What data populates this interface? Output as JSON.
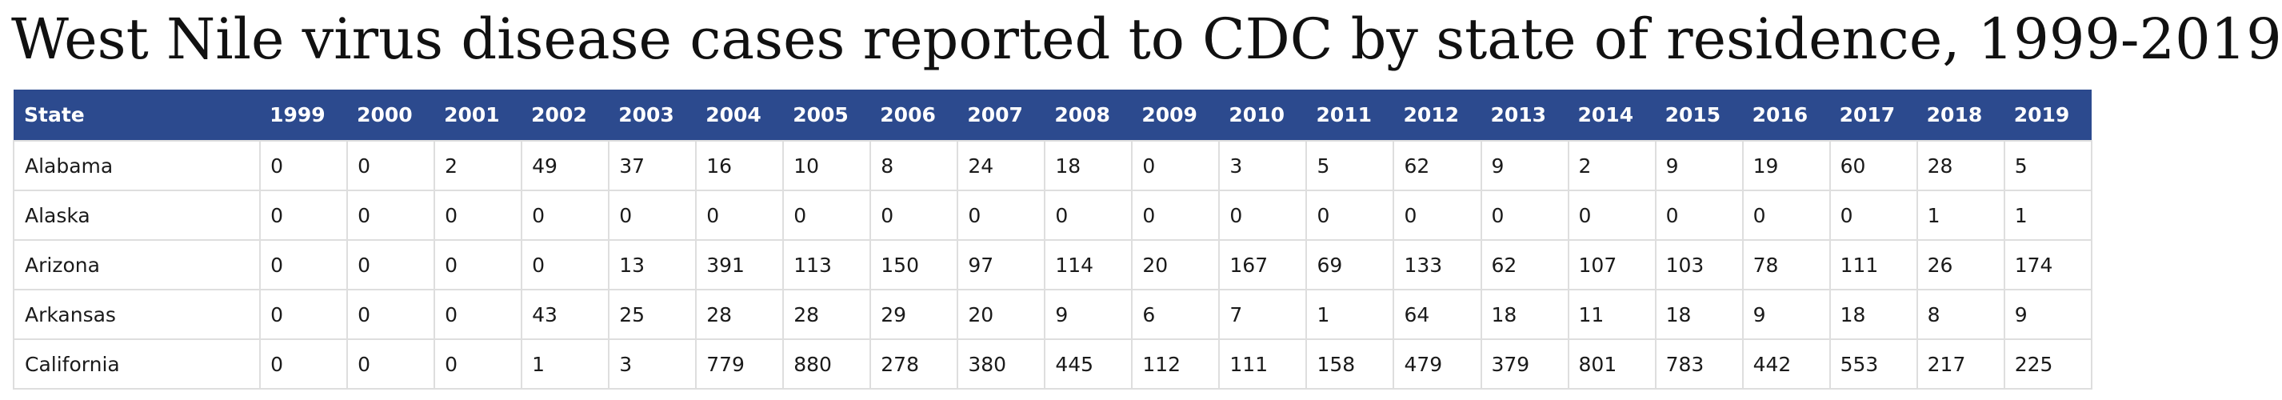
{
  "title": "West Nile virus disease cases reported to CDC by state of residence, 1999-2019",
  "table": {
    "state_header": "State",
    "years": [
      "1999",
      "2000",
      "2001",
      "2002",
      "2003",
      "2004",
      "2005",
      "2006",
      "2007",
      "2008",
      "2009",
      "2010",
      "2011",
      "2012",
      "2013",
      "2014",
      "2015",
      "2016",
      "2017",
      "2018",
      "2019"
    ],
    "rows": [
      {
        "state": "Alabama",
        "values": [
          "0",
          "0",
          "2",
          "49",
          "37",
          "16",
          "10",
          "8",
          "24",
          "18",
          "0",
          "3",
          "5",
          "62",
          "9",
          "2",
          "9",
          "19",
          "60",
          "28",
          "5"
        ]
      },
      {
        "state": "Alaska",
        "values": [
          "0",
          "0",
          "0",
          "0",
          "0",
          "0",
          "0",
          "0",
          "0",
          "0",
          "0",
          "0",
          "0",
          "0",
          "0",
          "0",
          "0",
          "0",
          "0",
          "1",
          "1"
        ]
      },
      {
        "state": "Arizona",
        "values": [
          "0",
          "0",
          "0",
          "0",
          "13",
          "391",
          "113",
          "150",
          "97",
          "114",
          "20",
          "167",
          "69",
          "133",
          "62",
          "107",
          "103",
          "78",
          "111",
          "26",
          "174"
        ]
      },
      {
        "state": "Arkansas",
        "values": [
          "0",
          "0",
          "0",
          "43",
          "25",
          "28",
          "28",
          "29",
          "20",
          "9",
          "6",
          "7",
          "1",
          "64",
          "18",
          "11",
          "18",
          "9",
          "18",
          "8",
          "9"
        ]
      },
      {
        "state": "California",
        "values": [
          "0",
          "0",
          "0",
          "1",
          "3",
          "779",
          "880",
          "278",
          "380",
          "445",
          "112",
          "111",
          "158",
          "479",
          "379",
          "801",
          "783",
          "442",
          "553",
          "217",
          "225"
        ]
      }
    ]
  }
}
